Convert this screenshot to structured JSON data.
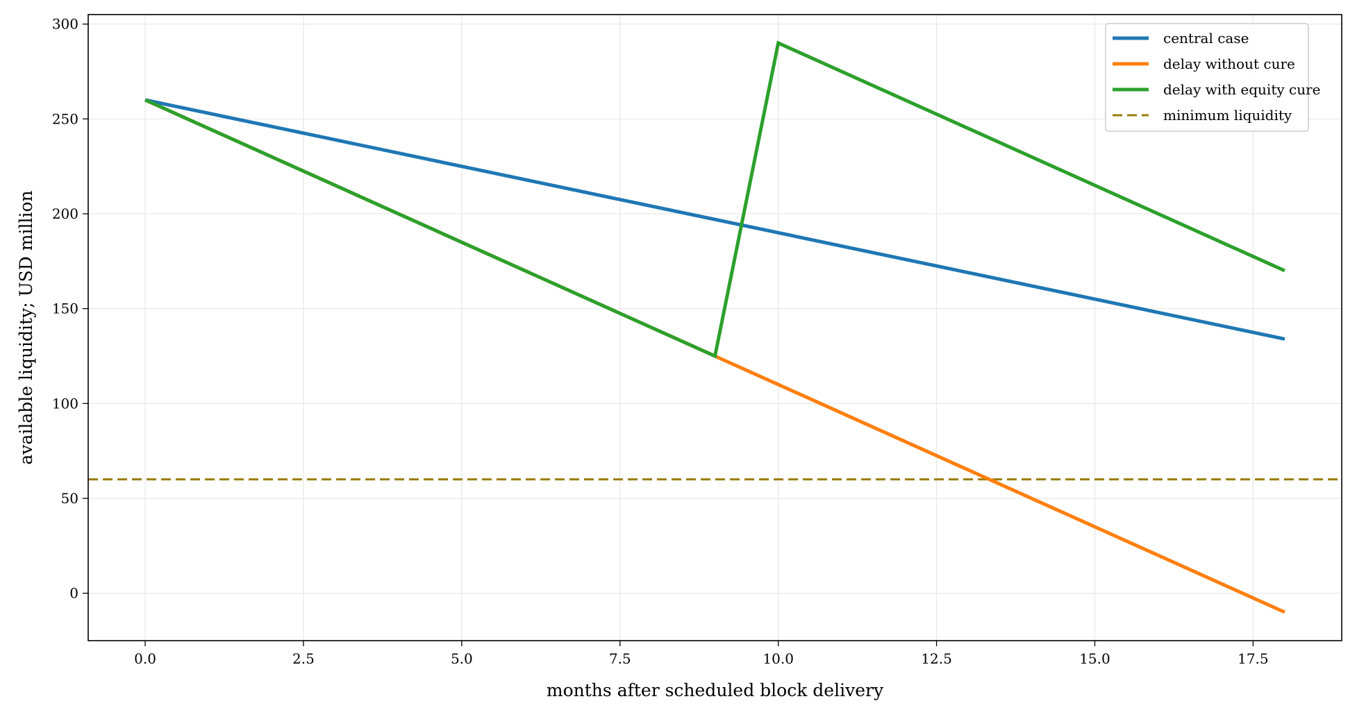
{
  "chart_data": {
    "type": "line",
    "title": "",
    "xlabel": "months after scheduled block delivery",
    "ylabel": "available liquidity; USD million",
    "xlim": [
      -0.9,
      18.9
    ],
    "ylim": [
      -25,
      305
    ],
    "x_ticks": [
      0,
      2.5,
      5,
      7.5,
      10,
      12.5,
      15,
      17.5
    ],
    "x_tick_labels": [
      "0.0",
      "2.5",
      "5.0",
      "7.5",
      "10.0",
      "12.5",
      "15.0",
      "17.5"
    ],
    "y_ticks": [
      0,
      50,
      100,
      150,
      200,
      250,
      300
    ],
    "y_tick_labels": [
      "0",
      "50",
      "100",
      "150",
      "200",
      "250",
      "300"
    ],
    "grid": true,
    "legend_position": "top-right",
    "series": [
      {
        "name": "central case",
        "color": "#1f77b4",
        "style": "solid",
        "points": [
          [
            0,
            260
          ],
          [
            18,
            134
          ]
        ]
      },
      {
        "name": "delay without cure",
        "color": "#ff7f0e",
        "style": "solid",
        "points": [
          [
            0,
            260
          ],
          [
            9,
            125
          ],
          [
            18,
            -10
          ]
        ]
      },
      {
        "name": "delay with equity cure",
        "color": "#2ca02c",
        "style": "solid",
        "points": [
          [
            0,
            260
          ],
          [
            9,
            125
          ],
          [
            10,
            290
          ],
          [
            18,
            170
          ]
        ]
      }
    ],
    "reference_lines": [
      {
        "name": "minimum liquidity",
        "color": "#9a7d0a",
        "style": "dashed",
        "y": 60
      }
    ]
  }
}
